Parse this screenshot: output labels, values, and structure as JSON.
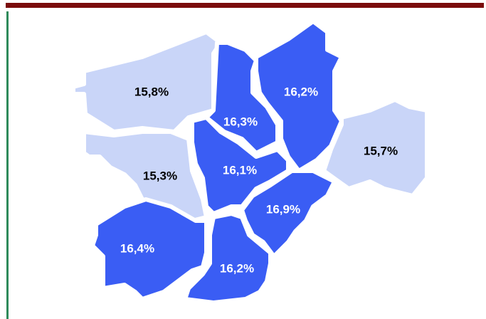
{
  "regions": [
    {
      "label": "15,8%",
      "fill": "#c9d5f8",
      "text_color": "#000000"
    },
    {
      "label": "16,3%",
      "fill": "#3a5df4",
      "text_color": "#ffffff"
    },
    {
      "label": "16,2%",
      "fill": "#3a5df4",
      "text_color": "#ffffff"
    },
    {
      "label": "15,7%",
      "fill": "#c9d5f8",
      "text_color": "#000000"
    },
    {
      "label": "15,3%",
      "fill": "#c9d5f8",
      "text_color": "#000000"
    },
    {
      "label": "16,1%",
      "fill": "#3a5df4",
      "text_color": "#ffffff"
    },
    {
      "label": "16,9%",
      "fill": "#3a5df4",
      "text_color": "#ffffff"
    },
    {
      "label": "16,4%",
      "fill": "#3a5df4",
      "text_color": "#ffffff"
    },
    {
      "label": "16,2%",
      "fill": "#3a5df4",
      "text_color": "#ffffff"
    }
  ]
}
